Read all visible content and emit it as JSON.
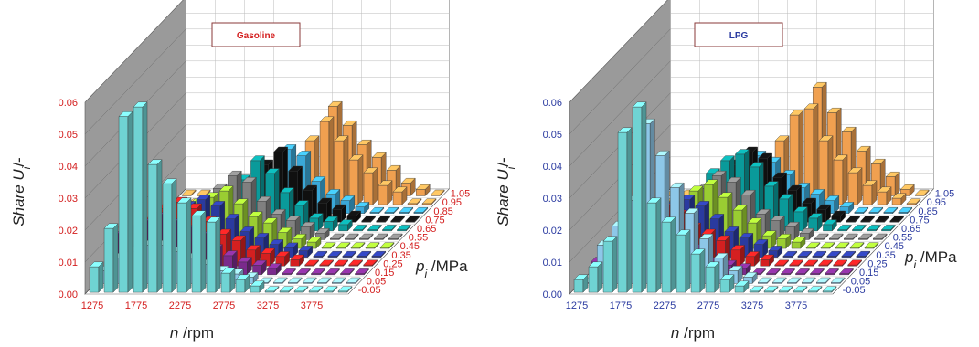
{
  "chart_data": [
    {
      "type": "bar3d",
      "title": "Gasoline",
      "ylabel_main": "Share U",
      "ylabel_sub": "i",
      "ylabel_tail": "/-",
      "xlabel": "n /rpm",
      "zlabel_main": "p",
      "zlabel_sub": "i",
      "zlabel_tail": " /MPa",
      "tick_color": "#d42020",
      "x_ticks": [
        "1275",
        "1775",
        "2275",
        "2775",
        "3275",
        "3775"
      ],
      "y_ticks": [
        "0.00",
        "0.01",
        "0.02",
        "0.03",
        "0.04",
        "0.05",
        "0.06"
      ],
      "z_ticks": [
        "-0.05",
        "0.05",
        "0.15",
        "0.25",
        "0.35",
        "0.45",
        "0.55",
        "0.65",
        "0.75",
        "0.85",
        "0.95",
        "1.05"
      ],
      "ylim": [
        0,
        0.06
      ],
      "series_colors": [
        "#6fd3d3",
        "#8dc7e8",
        "#7a2a8c",
        "#d42020",
        "#2a3aa0",
        "#9acd32",
        "#808080",
        "#0a9a9a",
        "#101010",
        "#3aa8d8",
        "#f0a050",
        "#f0a050"
      ],
      "rows": [
        [
          0.008,
          0.02,
          0.055,
          0.058,
          0.04,
          0.034,
          0.028,
          0.024,
          0.022,
          0.006,
          0.004,
          0.002,
          0.0,
          0.0,
          0.0,
          0.0,
          0.0,
          0.0
        ],
        [
          0.004,
          0.008,
          0.01,
          0.012,
          0.012,
          0.01,
          0.008,
          0.006,
          0.004,
          0.003,
          0.002,
          0.0,
          0.0,
          0.0,
          0.0,
          0.0,
          0.0,
          0.0
        ],
        [
          0.012,
          0.014,
          0.016,
          0.018,
          0.016,
          0.014,
          0.012,
          0.008,
          0.006,
          0.004,
          0.003,
          0.002,
          0.0,
          0.0,
          0.0,
          0.0,
          0.0,
          0.0
        ],
        [
          0.0,
          0.01,
          0.014,
          0.018,
          0.02,
          0.018,
          0.014,
          0.01,
          0.008,
          0.005,
          0.004,
          0.003,
          0.002,
          0.0,
          0.0,
          0.0,
          0.0,
          0.0
        ],
        [
          0.0,
          0.0,
          0.0,
          0.012,
          0.016,
          0.018,
          0.016,
          0.012,
          0.008,
          0.006,
          0.004,
          0.003,
          0.002,
          0.0,
          0.0,
          0.0,
          0.0,
          0.0
        ],
        [
          0.0,
          0.0,
          0.0,
          0.0,
          0.014,
          0.016,
          0.018,
          0.014,
          0.01,
          0.008,
          0.005,
          0.003,
          0.002,
          0.0,
          0.0,
          0.0,
          0.0,
          0.0
        ],
        [
          0.0,
          0.0,
          0.0,
          0.0,
          0.0,
          0.016,
          0.02,
          0.018,
          0.012,
          0.008,
          0.006,
          0.004,
          0.002,
          0.0,
          0.0,
          0.0,
          0.0,
          0.0
        ],
        [
          0.0,
          0.0,
          0.0,
          0.0,
          0.0,
          0.0,
          0.016,
          0.022,
          0.018,
          0.012,
          0.008,
          0.004,
          0.003,
          0.002,
          0.0,
          0.0,
          0.0,
          0.0
        ],
        [
          0.0,
          0.0,
          0.0,
          0.0,
          0.0,
          0.0,
          0.0,
          0.018,
          0.022,
          0.016,
          0.01,
          0.006,
          0.004,
          0.002,
          0.0,
          0.0,
          0.0,
          0.0
        ],
        [
          0.0,
          0.0,
          0.0,
          0.0,
          0.0,
          0.0,
          0.0,
          0.0,
          0.02,
          0.018,
          0.01,
          0.006,
          0.004,
          0.002,
          0.0,
          0.0,
          0.0,
          0.0
        ],
        [
          0.0,
          0.0,
          0.0,
          0.0,
          0.0,
          0.0,
          0.0,
          0.0,
          0.0,
          0.02,
          0.026,
          0.02,
          0.014,
          0.01,
          0.006,
          0.004,
          0.0,
          0.0
        ],
        [
          0.0,
          0.0,
          0.0,
          0.0,
          0.0,
          0.0,
          0.0,
          0.0,
          0.0,
          0.0,
          0.028,
          0.022,
          0.016,
          0.012,
          0.008,
          0.004,
          0.002,
          0.0
        ]
      ]
    },
    {
      "type": "bar3d",
      "title": "LPG",
      "ylabel_main": "Share U",
      "ylabel_sub": "i",
      "ylabel_tail": "/-",
      "xlabel": "n /rpm",
      "zlabel_main": "p",
      "zlabel_sub": "i",
      "zlabel_tail": " /MPa",
      "tick_color": "#2a3aa0",
      "x_ticks": [
        "1275",
        "1775",
        "2275",
        "2775",
        "3275",
        "3775"
      ],
      "y_ticks": [
        "0.00",
        "0.01",
        "0.02",
        "0.03",
        "0.04",
        "0.05",
        "0.06"
      ],
      "z_ticks": [
        "-0.05",
        "0.05",
        "0.15",
        "0.25",
        "0.35",
        "0.45",
        "0.55",
        "0.65",
        "0.75",
        "0.85",
        "0.95",
        "1.05"
      ],
      "ylim": [
        0,
        0.06
      ],
      "series_colors": [
        "#6fd3d3",
        "#8dc7e8",
        "#7a2a8c",
        "#d42020",
        "#2a3aa0",
        "#9acd32",
        "#808080",
        "#0a9a9a",
        "#101010",
        "#3aa8d8",
        "#f0a050",
        "#f0a050"
      ],
      "rows": [
        [
          0.004,
          0.008,
          0.016,
          0.05,
          0.058,
          0.028,
          0.022,
          0.018,
          0.012,
          0.008,
          0.004,
          0.002,
          0.0,
          0.0,
          0.0,
          0.0,
          0.0,
          0.0
        ],
        [
          0.0,
          0.012,
          0.018,
          0.026,
          0.05,
          0.04,
          0.03,
          0.022,
          0.014,
          0.008,
          0.004,
          0.002,
          0.0,
          0.0,
          0.0,
          0.0,
          0.0,
          0.0
        ],
        [
          0.004,
          0.006,
          0.008,
          0.01,
          0.012,
          0.012,
          0.01,
          0.008,
          0.004,
          0.003,
          0.002,
          0.0,
          0.0,
          0.0,
          0.0,
          0.0,
          0.0,
          0.0
        ],
        [
          0.0,
          0.008,
          0.01,
          0.014,
          0.018,
          0.016,
          0.012,
          0.01,
          0.008,
          0.005,
          0.003,
          0.002,
          0.0,
          0.0,
          0.0,
          0.0,
          0.0,
          0.0
        ],
        [
          0.0,
          0.0,
          0.008,
          0.012,
          0.016,
          0.018,
          0.016,
          0.012,
          0.008,
          0.006,
          0.004,
          0.002,
          0.0,
          0.0,
          0.0,
          0.0,
          0.0,
          0.0
        ],
        [
          0.0,
          0.0,
          0.0,
          0.01,
          0.014,
          0.018,
          0.02,
          0.016,
          0.012,
          0.008,
          0.004,
          0.003,
          0.002,
          0.0,
          0.0,
          0.0,
          0.0,
          0.0
        ],
        [
          0.0,
          0.0,
          0.0,
          0.0,
          0.012,
          0.016,
          0.02,
          0.018,
          0.014,
          0.008,
          0.006,
          0.004,
          0.002,
          0.0,
          0.0,
          0.0,
          0.0,
          0.0
        ],
        [
          0.0,
          0.0,
          0.0,
          0.0,
          0.0,
          0.018,
          0.022,
          0.024,
          0.02,
          0.014,
          0.01,
          0.006,
          0.004,
          0.002,
          0.0,
          0.0,
          0.0,
          0.0
        ],
        [
          0.0,
          0.0,
          0.0,
          0.0,
          0.0,
          0.0,
          0.018,
          0.022,
          0.02,
          0.014,
          0.01,
          0.006,
          0.004,
          0.002,
          0.0,
          0.0,
          0.0,
          0.0
        ],
        [
          0.0,
          0.0,
          0.0,
          0.0,
          0.0,
          0.0,
          0.0,
          0.018,
          0.016,
          0.012,
          0.008,
          0.006,
          0.004,
          0.002,
          0.0,
          0.0,
          0.0,
          0.0
        ],
        [
          0.0,
          0.0,
          0.0,
          0.0,
          0.0,
          0.0,
          0.0,
          0.0,
          0.02,
          0.028,
          0.03,
          0.02,
          0.014,
          0.01,
          0.006,
          0.004,
          0.002,
          0.0
        ],
        [
          0.0,
          0.0,
          0.0,
          0.0,
          0.0,
          0.0,
          0.0,
          0.0,
          0.0,
          0.0,
          0.034,
          0.026,
          0.02,
          0.014,
          0.01,
          0.006,
          0.002,
          0.0
        ]
      ]
    }
  ]
}
